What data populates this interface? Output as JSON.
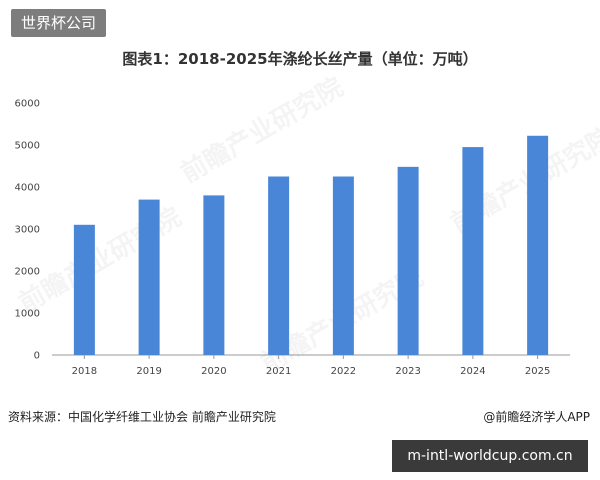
{
  "corner_badge": "世界杯公司",
  "source": "资料来源：中国化学纤维工业协会  前瞻产业研究院",
  "brand": "@前瞻经济学人APP",
  "url_banner": "m-intl-worldcup.com.cn",
  "watermark_text": "前瞻产业研究院",
  "colors": {
    "bar": "#4a86d8",
    "axis": "#999999"
  },
  "chart_data": {
    "type": "bar",
    "title": "图表1：2018-2025年涤纶长丝产量（单位：万吨）",
    "categories": [
      "2018",
      "2019",
      "2020",
      "2021",
      "2022",
      "2023",
      "2024",
      "2025"
    ],
    "values": [
      3100,
      3700,
      3800,
      4250,
      4250,
      4480,
      4950,
      5220
    ],
    "ylim": [
      0,
      6000
    ],
    "yticks": [
      0,
      1000,
      2000,
      3000,
      4000,
      5000,
      6000
    ],
    "grid": false
  }
}
